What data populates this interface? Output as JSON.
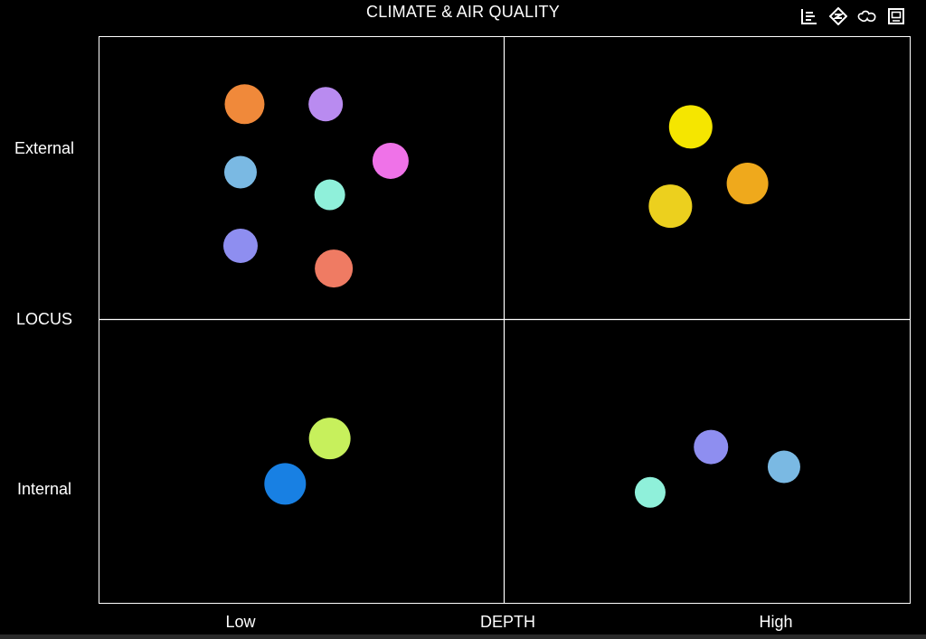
{
  "chart_data": {
    "type": "scatter",
    "title": "CLIMATE & AIR QUALITY",
    "xlabel": "DEPTH",
    "ylabel": "LOCUS",
    "xlim": [
      0,
      10
    ],
    "ylim": [
      0,
      10
    ],
    "x_ticks": [
      {
        "label": "Low",
        "value": 1.75
      },
      {
        "label": "High",
        "value": 8.35
      }
    ],
    "y_ticks": [
      {
        "label": "External",
        "value": 8.0
      },
      {
        "label": "Internal",
        "value": 2.0
      }
    ],
    "x_divider": 5,
    "y_divider": 5,
    "grid": false,
    "points": [
      {
        "x": 1.8,
        "y": 8.8,
        "r": 22,
        "color": "#f0893a"
      },
      {
        "x": 2.8,
        "y": 8.8,
        "r": 19,
        "color": "#b98bf0"
      },
      {
        "x": 3.6,
        "y": 7.8,
        "r": 20,
        "color": "#ef72e8"
      },
      {
        "x": 1.75,
        "y": 7.6,
        "r": 18,
        "color": "#7ab9e3"
      },
      {
        "x": 2.85,
        "y": 7.2,
        "r": 17,
        "color": "#8ff0da"
      },
      {
        "x": 1.75,
        "y": 6.3,
        "r": 19,
        "color": "#8e8ef0"
      },
      {
        "x": 2.9,
        "y": 5.9,
        "r": 21,
        "color": "#ef7b63"
      },
      {
        "x": 7.3,
        "y": 8.4,
        "r": 24,
        "color": "#f5e600"
      },
      {
        "x": 8.0,
        "y": 7.4,
        "r": 23,
        "color": "#efa91c"
      },
      {
        "x": 7.05,
        "y": 7.0,
        "r": 24,
        "color": "#ecd01e"
      },
      {
        "x": 2.85,
        "y": 2.9,
        "r": 23,
        "color": "#c7f05c"
      },
      {
        "x": 2.3,
        "y": 2.1,
        "r": 23,
        "color": "#1880e3"
      },
      {
        "x": 7.55,
        "y": 2.75,
        "r": 19,
        "color": "#8e8ef0"
      },
      {
        "x": 8.45,
        "y": 2.4,
        "r": 18,
        "color": "#7ab9e3"
      },
      {
        "x": 6.8,
        "y": 1.95,
        "r": 17,
        "color": "#8ff0da"
      }
    ],
    "colors": {
      "background": "#000000",
      "frame": "#ffffff",
      "text": "#ffffff"
    }
  },
  "toolbar": {
    "items": [
      {
        "name": "data-view-icon"
      },
      {
        "name": "magic-type-icon"
      },
      {
        "name": "restore-icon"
      },
      {
        "name": "save-image-icon"
      }
    ]
  }
}
